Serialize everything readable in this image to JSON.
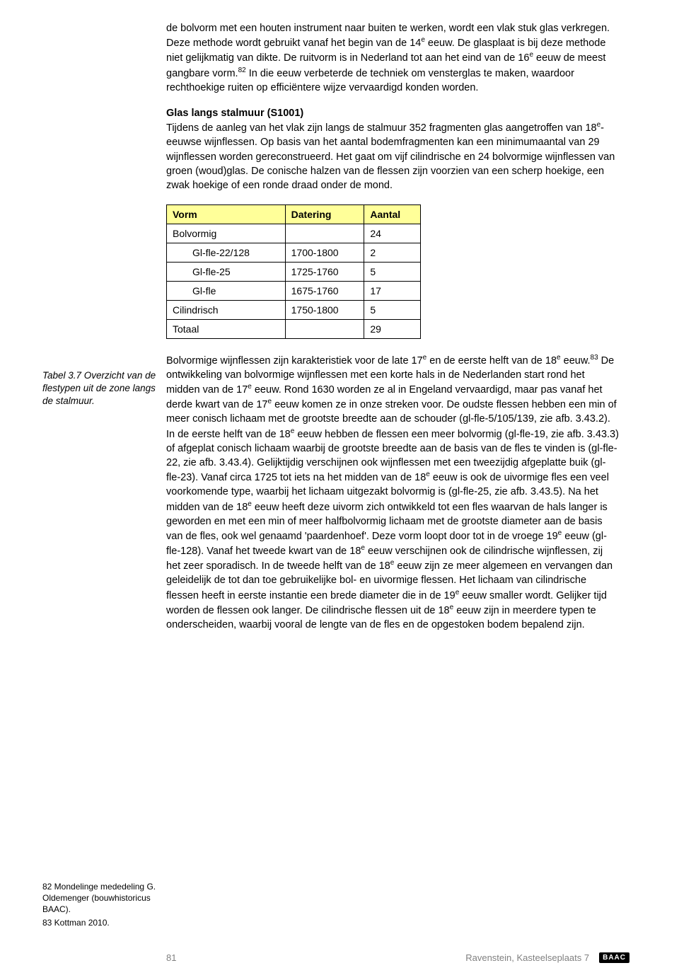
{
  "para1_html": "de bolvorm met een houten instrument naar buiten te werken, wordt een vlak stuk glas verkregen. Deze methode wordt gebruikt vanaf het begin van de 14<sup>e</sup> eeuw. De glasplaat is bij deze methode niet gelijkmatig van dikte. De ruitvorm is in Nederland tot aan het eind van de 16<sup>e</sup> eeuw de meest gangbare vorm.<sup>82</sup> In die eeuw verbeterde de techniek om vensterglas te maken, waardoor rechthoekige ruiten op efficiëntere wijze vervaardigd konden worden.",
  "section_heading": "Glas langs stalmuur (S1001)",
  "para2_html": "Tijdens de aanleg van het vlak zijn langs de stalmuur 352 fragmenten glas aangetroffen van 18<sup>e</sup>-eeuwse wijnflessen. Op basis van het aantal bodemfragmenten kan een minimumaantal van 29 wijnflessen worden gereconstrueerd. Het gaat om vijf cilindrische en 24 bolvormige wijnflessen van groen (woud)glas. De conische halzen van de flessen zijn voorzien van een scherp hoekige, een zwak hoekige of een ronde draad onder de mond.",
  "caption": "Tabel 3.7 Overzicht van de flestypen uit de zone langs de stalmuur.",
  "table": {
    "header_bg": "#ffff99",
    "border_color": "#000000",
    "columns": [
      "Vorm",
      "Datering",
      "Aantal"
    ],
    "rows": [
      {
        "cells": [
          "Bolvormig",
          "",
          "24"
        ],
        "indent": false
      },
      {
        "cells": [
          "Gl-fle-22/128",
          "1700-1800",
          "2"
        ],
        "indent": true
      },
      {
        "cells": [
          "Gl-fle-25",
          "1725-1760",
          "5"
        ],
        "indent": true
      },
      {
        "cells": [
          "Gl-fle",
          "1675-1760",
          "17"
        ],
        "indent": true
      },
      {
        "cells": [
          "Cilindrisch",
          "1750-1800",
          "5"
        ],
        "indent": false
      },
      {
        "cells": [
          "Totaal",
          "",
          "29"
        ],
        "indent": false
      }
    ]
  },
  "para3_html": "Bolvormige wijnflessen zijn karakteristiek voor de late 17<sup>e</sup> en de eerste helft van de 18<sup>e</sup> eeuw.<sup>83</sup> De ontwikkeling van bolvormige wijnflessen met een korte hals in de Nederlanden start rond het midden van de 17<sup>e</sup> eeuw. Rond 1630 worden ze al in Engeland vervaardigd, maar pas vanaf het derde kwart van de 17<sup>e</sup> eeuw komen ze in onze streken voor. De oudste flessen hebben een min of meer conisch lichaam met de grootste breedte aan de schouder (gl-fle-5/105/139, zie afb. 3.43.2). In de eerste helft van de 18<sup>e</sup> eeuw hebben de flessen een meer bolvormig (gl-fle-19, zie afb. 3.43.3) of afgeplat conisch lichaam waarbij de grootste breedte aan de basis van de fles te vinden is (gl-fle-22, zie afb. 3.43.4). Gelijktijdig verschijnen ook wijnflessen met een tweezijdig afgeplatte buik (gl-fle-23). Vanaf circa 1725 tot iets na het midden van de 18<sup>e</sup> eeuw is ook de uivormige fles een veel voorkomende type, waarbij het lichaam uitgezakt bolvormig is (gl-fle-25, zie afb. 3.43.5). Na het midden van de 18<sup>e</sup> eeuw heeft deze uivorm zich ontwikkeld tot een fles waarvan de hals langer is geworden en met een min of meer halfbolvormig lichaam met de grootste diameter aan de basis van de fles, ook wel genaamd 'paardenhoef'. Deze vorm loopt door tot in de vroege 19<sup>e</sup> eeuw (gl-fle-128). Vanaf het tweede kwart van de 18<sup>e</sup> eeuw verschijnen ook de cilindrische wijnflessen, zij het zeer sporadisch. In de tweede helft van de 18<sup>e</sup> eeuw zijn ze meer algemeen en vervangen dan geleidelijk de tot dan toe gebruikelijke bol- en uivormige flessen. Het lichaam van cilindrische flessen heeft in eerste instantie een brede diameter die in de 19<sup>e</sup> eeuw smaller wordt. Gelijker tijd worden de flessen ook langer. De cilindrische flessen uit de 18<sup>e</sup> eeuw zijn in meerdere typen te onderscheiden, waarbij vooral de lengte van de fles en de opgestoken bodem bepalend zijn.",
  "footnotes": [
    {
      "num": "82",
      "text": "Mondelinge mededeling G. Oldemenger (bouwhistoricus BAAC)."
    },
    {
      "num": "83",
      "text": "Kottman 2010."
    }
  ],
  "footer": {
    "page_num": "81",
    "title": "Ravenstein, Kasteelseplaats 7",
    "logo": "BAAC"
  }
}
